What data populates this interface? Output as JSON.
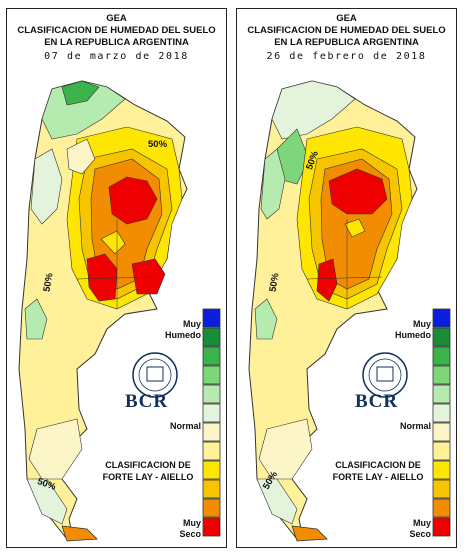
{
  "panels": [
    {
      "header": {
        "line1": "GEA",
        "line2": "CLASIFICACION DE HUMEDAD DEL SUELO",
        "line3": "EN LA REPUBLICA ARGENTINA",
        "date": "07 de marzo de 2018"
      },
      "contour_labels": {
        "a": "50%",
        "b": "50%",
        "c": "50%"
      },
      "scale": {
        "top": "Muy",
        "top2": "Humedo",
        "middle": "Normal",
        "bottom": "Muy",
        "bottom2": "Seco"
      },
      "logo": "BCR",
      "classification": {
        "line1": "CLASIFICACION DE",
        "line2": "FORTE LAY - AIELLO"
      }
    },
    {
      "header": {
        "line1": "GEA",
        "line2": "CLASIFICACION DE HUMEDAD DEL SUELO",
        "line3": "EN LA REPUBLICA ARGENTINA",
        "date": "26 de febrero de 2018"
      },
      "contour_labels": {
        "a": "50%",
        "b": "50%",
        "c": "50%"
      },
      "scale": {
        "top": "Muy",
        "top2": "Humedo",
        "middle": "Normal",
        "bottom": "Muy",
        "bottom2": "Seco"
      },
      "logo": "BCR",
      "classification": {
        "line1": "CLASIFICACION DE",
        "line2": "FORTE LAY - AIELLO"
      }
    }
  ],
  "colors": {
    "scale": [
      "#0a1ee0",
      "#1a8c3a",
      "#3cb34a",
      "#7dd67a",
      "#b6ebb0",
      "#e4f4dc",
      "#fbf5c8",
      "#fff19a",
      "#ffe600",
      "#f7c400",
      "#f28c00",
      "#ee0000"
    ],
    "border": "#222222",
    "logo": "#12305e"
  }
}
